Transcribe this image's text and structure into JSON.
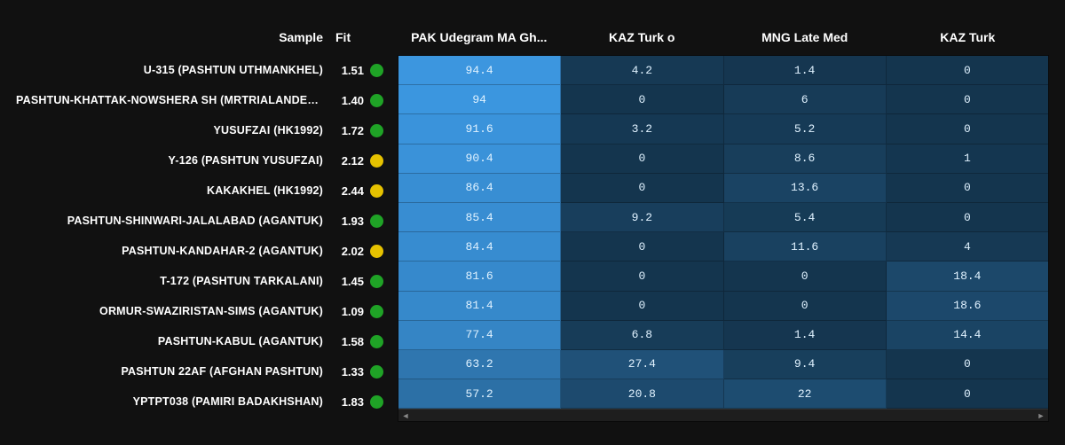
{
  "headers": {
    "sample": "Sample",
    "fit": "Fit",
    "heatmap": [
      "PAK Udegram MA Gh...",
      "KAZ Turk o",
      "MNG Late Med",
      "KAZ Turk"
    ]
  },
  "fit_colors": {
    "good": "#1fa326",
    "mid": "#e6c200"
  },
  "heatmap_palette": {
    "min_color": "#14354e",
    "max_color": "#3e9ce8",
    "text_color": "#e0f2ff",
    "value_min": 0,
    "value_max": 100
  },
  "rows": [
    {
      "sample": "U-315 (PASHTUN UTHMANKHEL)",
      "fit": "1.51",
      "fit_level": "good",
      "cells": [
        94.4,
        4.2,
        1.4,
        0
      ]
    },
    {
      "sample": "PASHTUN-KHATTAK-NOWSHERA SH (MRTRIALANDER...",
      "fit": "1.40",
      "fit_level": "good",
      "cells": [
        94,
        0,
        6,
        0
      ]
    },
    {
      "sample": "YUSUFZAI (HK1992)",
      "fit": "1.72",
      "fit_level": "good",
      "cells": [
        91.6,
        3.2,
        5.2,
        0
      ]
    },
    {
      "sample": "Y-126 (PASHTUN YUSUFZAI)",
      "fit": "2.12",
      "fit_level": "mid",
      "cells": [
        90.4,
        0,
        8.6,
        1
      ]
    },
    {
      "sample": "KAKAKHEL (HK1992)",
      "fit": "2.44",
      "fit_level": "mid",
      "cells": [
        86.4,
        0,
        13.6,
        0
      ]
    },
    {
      "sample": "PASHTUN-SHINWARI-JALALABAD (AGANTUK)",
      "fit": "1.93",
      "fit_level": "good",
      "cells": [
        85.4,
        9.2,
        5.4,
        0
      ]
    },
    {
      "sample": "PASHTUN-KANDAHAR-2 (AGANTUK)",
      "fit": "2.02",
      "fit_level": "mid",
      "cells": [
        84.4,
        0,
        11.6,
        4
      ]
    },
    {
      "sample": "T-172 (PASHTUN TARKALANI)",
      "fit": "1.45",
      "fit_level": "good",
      "cells": [
        81.6,
        0,
        0,
        18.4
      ]
    },
    {
      "sample": "ORMUR-SWAZIRISTAN-SIMS (AGANTUK)",
      "fit": "1.09",
      "fit_level": "good",
      "cells": [
        81.4,
        0,
        0,
        18.6
      ]
    },
    {
      "sample": "PASHTUN-KABUL (AGANTUK)",
      "fit": "1.58",
      "fit_level": "good",
      "cells": [
        77.4,
        6.8,
        1.4,
        14.4
      ]
    },
    {
      "sample": "PASHTUN 22AF (AFGHAN PASHTUN)",
      "fit": "1.33",
      "fit_level": "good",
      "cells": [
        63.2,
        27.4,
        9.4,
        0
      ]
    },
    {
      "sample": "YPTPT038 (PAMIRI BADAKHSHAN)",
      "fit": "1.83",
      "fit_level": "good",
      "cells": [
        57.2,
        20.8,
        22,
        0
      ]
    }
  ],
  "scrollbar": {
    "bg": "#1e1e1e",
    "arrow_color": "#888888",
    "arrow_left": "◄",
    "arrow_right": "►"
  }
}
